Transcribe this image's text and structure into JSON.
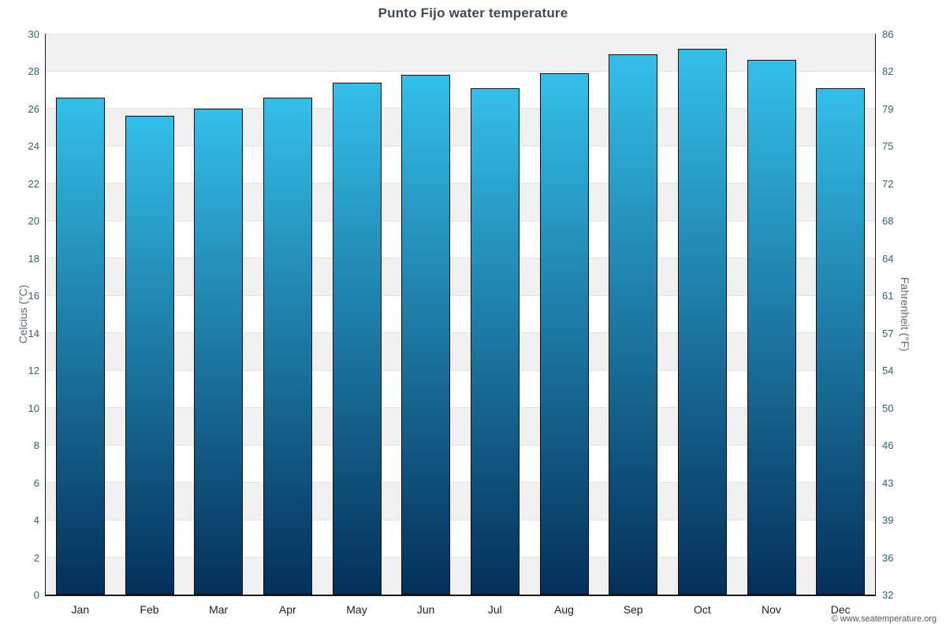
{
  "title": "Punto Fijo water temperature",
  "copyright": "© www.seatemperature.org",
  "chart_data": {
    "type": "bar",
    "title": "Punto Fijo water temperature",
    "categories": [
      "Jan",
      "Feb",
      "Mar",
      "Apr",
      "May",
      "Jun",
      "Jul",
      "Aug",
      "Sep",
      "Oct",
      "Nov",
      "Dec"
    ],
    "values": [
      26.6,
      25.6,
      26.0,
      26.6,
      27.4,
      27.8,
      27.1,
      27.9,
      28.9,
      29.2,
      28.6,
      27.1
    ],
    "xlabel": "",
    "ylabel_left": "Celcius (°C)",
    "ylabel_right": "Fahrenheit (°F)",
    "ylim_c": [
      0,
      30
    ],
    "yticks_c": [
      0,
      2,
      4,
      6,
      8,
      10,
      12,
      14,
      16,
      18,
      20,
      22,
      24,
      26,
      28,
      30
    ],
    "yticks_f": [
      32,
      36,
      39,
      43,
      46,
      50,
      54,
      57,
      61,
      64,
      68,
      72,
      75,
      79,
      82,
      86
    ],
    "grid": true,
    "legend": "none",
    "colors": {
      "bar_gradient_top": "#33bfea",
      "bar_gradient_bottom": "#04305a",
      "bar_border": "#0d0d0d",
      "band": "#f0f0f0",
      "gridline": "#e3e3e3",
      "tick_label": "#2e6476",
      "axis_line": "#1a1a1a",
      "title": "#3d4a52"
    }
  }
}
